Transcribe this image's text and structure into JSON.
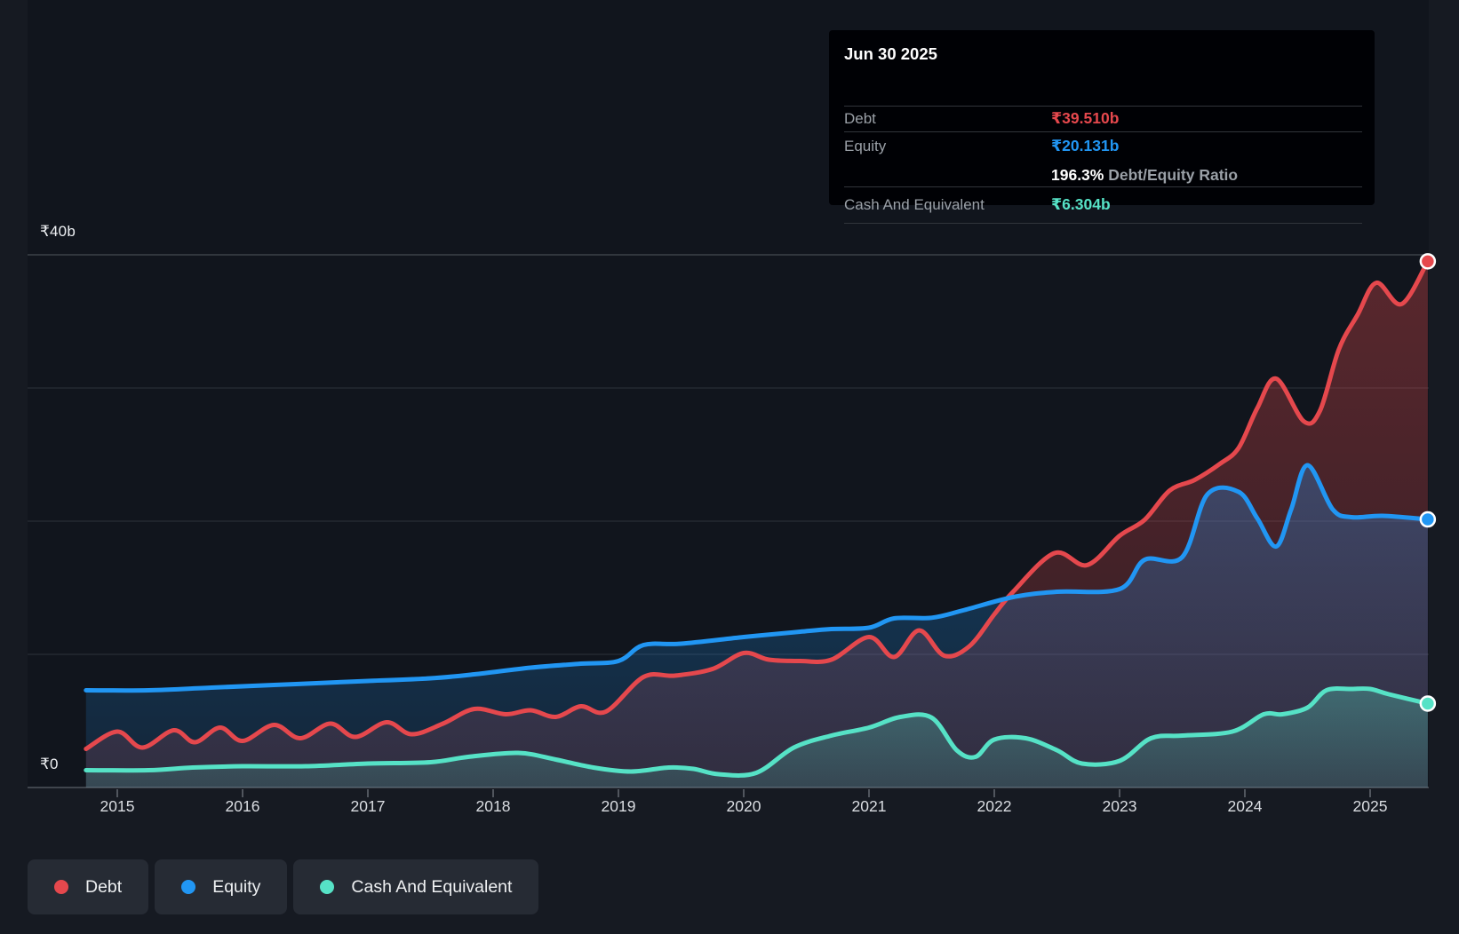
{
  "colors": {
    "background": "#161a22",
    "plot_background": "#11151d",
    "debt": "#e5484d",
    "equity": "#2196f3",
    "cash": "#56e2c6",
    "gridline": "#242932",
    "gridline_top": "#3c4148",
    "baseline": "#40454d",
    "tick": "#51565e"
  },
  "tooltip": {
    "date": "Jun 30 2025",
    "rows": {
      "debt": {
        "label": "Debt",
        "value": "₹39.510b"
      },
      "equity": {
        "label": "Equity",
        "value": "₹20.131b"
      },
      "ratio": {
        "pct": "196.3%",
        "text": "Debt/Equity Ratio"
      },
      "cash": {
        "label": "Cash And Equivalent",
        "value": "₹6.304b"
      }
    }
  },
  "legend": {
    "items": [
      {
        "id": "debt",
        "label": "Debt"
      },
      {
        "id": "equity",
        "label": "Equity"
      },
      {
        "id": "cash",
        "label": "Cash And Equivalent"
      }
    ]
  },
  "axes": {
    "y_top_label": "₹40b",
    "y_zero_label": "₹0",
    "x_ticks": [
      "2015",
      "2016",
      "2017",
      "2018",
      "2019",
      "2020",
      "2021",
      "2022",
      "2023",
      "2024",
      "2025"
    ],
    "y_gridlines_b": [
      40,
      30,
      20,
      10
    ]
  },
  "chart_data": {
    "type": "area",
    "x_unit": "decimal_year",
    "y_unit": "INR billions",
    "xlim": [
      2014.75,
      2025.46
    ],
    "ylim": [
      0,
      40
    ],
    "legend_position": "bottom-left",
    "grid": true,
    "series": [
      {
        "name": "Debt",
        "color": "#e5484d",
        "last_value_label": "₹39.510b",
        "points": [
          [
            2014.75,
            2.9
          ],
          [
            2015.0,
            4.2
          ],
          [
            2015.2,
            3.0
          ],
          [
            2015.45,
            4.3
          ],
          [
            2015.62,
            3.4
          ],
          [
            2015.82,
            4.5
          ],
          [
            2016.0,
            3.5
          ],
          [
            2016.25,
            4.7
          ],
          [
            2016.46,
            3.7
          ],
          [
            2016.7,
            4.8
          ],
          [
            2016.9,
            3.8
          ],
          [
            2017.15,
            4.9
          ],
          [
            2017.35,
            4.0
          ],
          [
            2017.6,
            4.8
          ],
          [
            2017.85,
            5.9
          ],
          [
            2018.1,
            5.5
          ],
          [
            2018.3,
            5.8
          ],
          [
            2018.5,
            5.3
          ],
          [
            2018.7,
            6.1
          ],
          [
            2018.9,
            5.7
          ],
          [
            2019.2,
            8.3
          ],
          [
            2019.45,
            8.4
          ],
          [
            2019.75,
            8.9
          ],
          [
            2020.0,
            10.1
          ],
          [
            2020.2,
            9.6
          ],
          [
            2020.45,
            9.5
          ],
          [
            2020.7,
            9.6
          ],
          [
            2021.0,
            11.3
          ],
          [
            2021.2,
            9.8
          ],
          [
            2021.4,
            11.8
          ],
          [
            2021.6,
            9.9
          ],
          [
            2021.8,
            10.6
          ],
          [
            2022.0,
            13.0
          ],
          [
            2022.15,
            14.7
          ],
          [
            2022.48,
            17.6
          ],
          [
            2022.74,
            16.7
          ],
          [
            2023.0,
            18.9
          ],
          [
            2023.2,
            20.1
          ],
          [
            2023.4,
            22.3
          ],
          [
            2023.6,
            23.1
          ],
          [
            2023.8,
            24.3
          ],
          [
            2023.95,
            25.5
          ],
          [
            2024.1,
            28.5
          ],
          [
            2024.25,
            30.7
          ],
          [
            2024.47,
            27.5
          ],
          [
            2024.6,
            28.3
          ],
          [
            2024.75,
            32.9
          ],
          [
            2024.9,
            35.5
          ],
          [
            2025.05,
            37.9
          ],
          [
            2025.25,
            36.3
          ],
          [
            2025.46,
            39.51
          ]
        ]
      },
      {
        "name": "Equity",
        "color": "#2196f3",
        "last_value_label": "₹20.131b",
        "points": [
          [
            2014.75,
            7.3
          ],
          [
            2015.25,
            7.3
          ],
          [
            2015.75,
            7.5
          ],
          [
            2016.25,
            7.7
          ],
          [
            2016.75,
            7.9
          ],
          [
            2017.0,
            8.0
          ],
          [
            2017.5,
            8.2
          ],
          [
            2017.85,
            8.5
          ],
          [
            2018.3,
            9.0
          ],
          [
            2018.7,
            9.3
          ],
          [
            2019.0,
            9.5
          ],
          [
            2019.2,
            10.7
          ],
          [
            2019.5,
            10.8
          ],
          [
            2020.0,
            11.3
          ],
          [
            2020.45,
            11.7
          ],
          [
            2020.7,
            11.9
          ],
          [
            2021.0,
            12.0
          ],
          [
            2021.2,
            12.7
          ],
          [
            2021.5,
            12.75
          ],
          [
            2021.75,
            13.3
          ],
          [
            2022.15,
            14.3
          ],
          [
            2022.5,
            14.7
          ],
          [
            2023.0,
            14.9
          ],
          [
            2023.2,
            17.1
          ],
          [
            2023.5,
            17.3
          ],
          [
            2023.7,
            22.0
          ],
          [
            2023.95,
            22.2
          ],
          [
            2024.1,
            20.2
          ],
          [
            2024.25,
            18.1
          ],
          [
            2024.37,
            20.9
          ],
          [
            2024.5,
            24.2
          ],
          [
            2024.7,
            20.9
          ],
          [
            2024.85,
            20.3
          ],
          [
            2025.1,
            20.4
          ],
          [
            2025.46,
            20.131
          ]
        ]
      },
      {
        "name": "Cash And Equivalent",
        "color": "#56e2c6",
        "last_value_label": "₹6.304b",
        "points": [
          [
            2014.75,
            1.3
          ],
          [
            2015.25,
            1.3
          ],
          [
            2015.6,
            1.5
          ],
          [
            2016.0,
            1.6
          ],
          [
            2016.5,
            1.6
          ],
          [
            2017.0,
            1.8
          ],
          [
            2017.5,
            1.9
          ],
          [
            2017.8,
            2.3
          ],
          [
            2018.2,
            2.6
          ],
          [
            2018.5,
            2.1
          ],
          [
            2018.8,
            1.5
          ],
          [
            2019.1,
            1.2
          ],
          [
            2019.4,
            1.5
          ],
          [
            2019.6,
            1.4
          ],
          [
            2019.8,
            1.0
          ],
          [
            2020.1,
            1.1
          ],
          [
            2020.4,
            3.0
          ],
          [
            2020.7,
            3.9
          ],
          [
            2021.0,
            4.5
          ],
          [
            2021.25,
            5.3
          ],
          [
            2021.5,
            5.25
          ],
          [
            2021.7,
            2.8
          ],
          [
            2021.85,
            2.3
          ],
          [
            2022.0,
            3.6
          ],
          [
            2022.25,
            3.7
          ],
          [
            2022.5,
            2.8
          ],
          [
            2022.7,
            1.8
          ],
          [
            2023.0,
            2.0
          ],
          [
            2023.25,
            3.7
          ],
          [
            2023.5,
            3.9
          ],
          [
            2023.9,
            4.2
          ],
          [
            2024.15,
            5.5
          ],
          [
            2024.3,
            5.5
          ],
          [
            2024.5,
            6.0
          ],
          [
            2024.65,
            7.3
          ],
          [
            2024.85,
            7.4
          ],
          [
            2025.0,
            7.4
          ],
          [
            2025.15,
            7.0
          ],
          [
            2025.46,
            6.304
          ]
        ]
      }
    ]
  }
}
